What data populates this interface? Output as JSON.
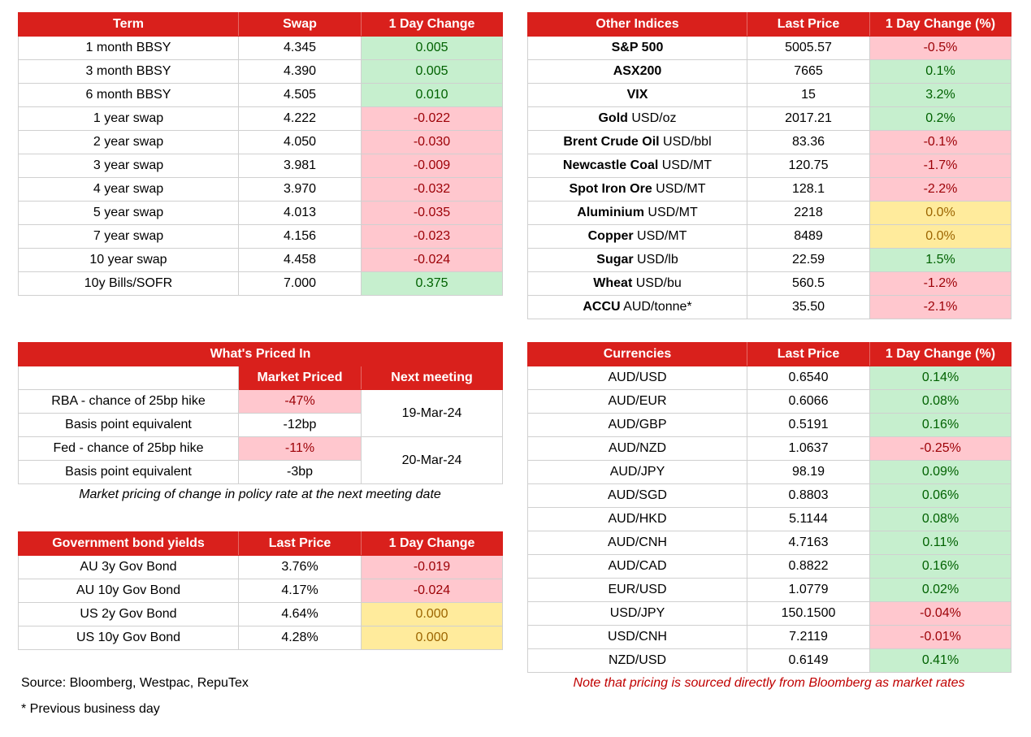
{
  "swaps": {
    "headers": [
      "Term",
      "Swap",
      "1 Day Change"
    ],
    "rows": [
      {
        "term": "1 month BBSY",
        "swap": "4.345",
        "change": "0.005",
        "status": "pos"
      },
      {
        "term": "3 month BBSY",
        "swap": "4.390",
        "change": "0.005",
        "status": "pos"
      },
      {
        "term": "6 month BBSY",
        "swap": "4.505",
        "change": "0.010",
        "status": "pos"
      },
      {
        "term": "1 year swap",
        "swap": "4.222",
        "change": "-0.022",
        "status": "neg"
      },
      {
        "term": "2 year swap",
        "swap": "4.050",
        "change": "-0.030",
        "status": "neg"
      },
      {
        "term": "3 year swap",
        "swap": "3.981",
        "change": "-0.009",
        "status": "neg"
      },
      {
        "term": "4 year swap",
        "swap": "3.970",
        "change": "-0.032",
        "status": "neg"
      },
      {
        "term": "5 year swap",
        "swap": "4.013",
        "change": "-0.035",
        "status": "neg"
      },
      {
        "term": "7 year swap",
        "swap": "4.156",
        "change": "-0.023",
        "status": "neg"
      },
      {
        "term": "10 year swap",
        "swap": "4.458",
        "change": "-0.024",
        "status": "neg"
      },
      {
        "term": "10y Bills/SOFR",
        "swap": "7.000",
        "change": "0.375",
        "status": "pos"
      }
    ]
  },
  "indices": {
    "headers": [
      "Other Indices",
      "Last Price",
      "1 Day Change (%)"
    ],
    "rows": [
      {
        "name": "S&P 500",
        "unit": "",
        "price": "5005.57",
        "change": "-0.5%",
        "status": "neg"
      },
      {
        "name": "ASX200",
        "unit": "",
        "price": "7665",
        "change": "0.1%",
        "status": "pos"
      },
      {
        "name": "VIX",
        "unit": "",
        "price": "15",
        "change": "3.2%",
        "status": "pos"
      },
      {
        "name": "Gold",
        "unit": " USD/oz",
        "price": "2017.21",
        "change": "0.2%",
        "status": "pos"
      },
      {
        "name": "Brent Crude Oil",
        "unit": " USD/bbl",
        "price": "83.36",
        "change": "-0.1%",
        "status": "neg"
      },
      {
        "name": "Newcastle Coal",
        "unit": " USD/MT",
        "price": "120.75",
        "change": "-1.7%",
        "status": "neg"
      },
      {
        "name": "Spot Iron Ore",
        "unit": " USD/MT",
        "price": "128.1",
        "change": "-2.2%",
        "status": "neg"
      },
      {
        "name": "Aluminium",
        "unit": " USD/MT",
        "price": "2218",
        "change": "0.0%",
        "status": "neu"
      },
      {
        "name": "Copper",
        "unit": " USD/MT",
        "price": "8489",
        "change": "0.0%",
        "status": "neu"
      },
      {
        "name": "Sugar",
        "unit": " USD/lb",
        "price": "22.59",
        "change": "1.5%",
        "status": "pos"
      },
      {
        "name": "Wheat",
        "unit": " USD/bu",
        "price": "560.5",
        "change": "-1.2%",
        "status": "neg"
      },
      {
        "name": "ACCU",
        "unit": " AUD/tonne*",
        "price": "35.50",
        "change": "-2.1%",
        "status": "neg"
      }
    ]
  },
  "priced_in": {
    "title": "What's Priced In",
    "col_market": "Market Priced",
    "col_next": "Next meeting",
    "rba_label": "RBA - chance of 25bp hike",
    "rba_value": "-47%",
    "rba_bp_label": "Basis point equivalent",
    "rba_bp_value": "-12bp",
    "rba_date": "19-Mar-24",
    "fed_label": "Fed - chance of 25bp hike",
    "fed_value": "-11%",
    "fed_bp_label": "Basis point equivalent",
    "fed_bp_value": "-3bp",
    "fed_date": "20-Mar-24",
    "caption": "Market pricing of change in policy rate at the next meeting date"
  },
  "bonds": {
    "headers": [
      "Government bond yields",
      "Last Price",
      "1 Day Change"
    ],
    "rows": [
      {
        "name": "AU 3y Gov Bond",
        "price": "3.76%",
        "change": "-0.019",
        "status": "neg"
      },
      {
        "name": "AU 10y Gov Bond",
        "price": "4.17%",
        "change": "-0.024",
        "status": "neg"
      },
      {
        "name": "US 2y Gov Bond",
        "price": "4.64%",
        "change": "0.000",
        "status": "neu"
      },
      {
        "name": "US 10y Gov Bond",
        "price": "4.28%",
        "change": "0.000",
        "status": "neu"
      }
    ]
  },
  "currencies": {
    "headers": [
      "Currencies",
      "Last Price",
      "1 Day Change (%)"
    ],
    "rows": [
      {
        "pair": "AUD/USD",
        "price": "0.6540",
        "change": "0.14%",
        "status": "pos"
      },
      {
        "pair": "AUD/EUR",
        "price": "0.6066",
        "change": "0.08%",
        "status": "pos"
      },
      {
        "pair": "AUD/GBP",
        "price": "0.5191",
        "change": "0.16%",
        "status": "pos"
      },
      {
        "pair": "AUD/NZD",
        "price": "1.0637",
        "change": "-0.25%",
        "status": "neg"
      },
      {
        "pair": "AUD/JPY",
        "price": "98.19",
        "change": "0.09%",
        "status": "pos"
      },
      {
        "pair": "AUD/SGD",
        "price": "0.8803",
        "change": "0.06%",
        "status": "pos"
      },
      {
        "pair": "AUD/HKD",
        "price": "5.1144",
        "change": "0.08%",
        "status": "pos"
      },
      {
        "pair": "AUD/CNH",
        "price": "4.7163",
        "change": "0.11%",
        "status": "pos"
      },
      {
        "pair": "AUD/CAD",
        "price": "0.8822",
        "change": "0.16%",
        "status": "pos"
      },
      {
        "pair": "EUR/USD",
        "price": "1.0779",
        "change": "0.02%",
        "status": "pos"
      },
      {
        "pair": "USD/JPY",
        "price": "150.1500",
        "change": "-0.04%",
        "status": "neg"
      },
      {
        "pair": "USD/CNH",
        "price": "7.2119",
        "change": "-0.01%",
        "status": "neg"
      },
      {
        "pair": "NZD/USD",
        "price": "0.6149",
        "change": "0.41%",
        "status": "pos"
      }
    ]
  },
  "footer": {
    "source": "Source: Bloomberg, Westpac, RepuTex",
    "prev_day": "* Previous business day",
    "bloomberg_note": "Note that pricing is sourced directly from Bloomberg as market rates"
  }
}
